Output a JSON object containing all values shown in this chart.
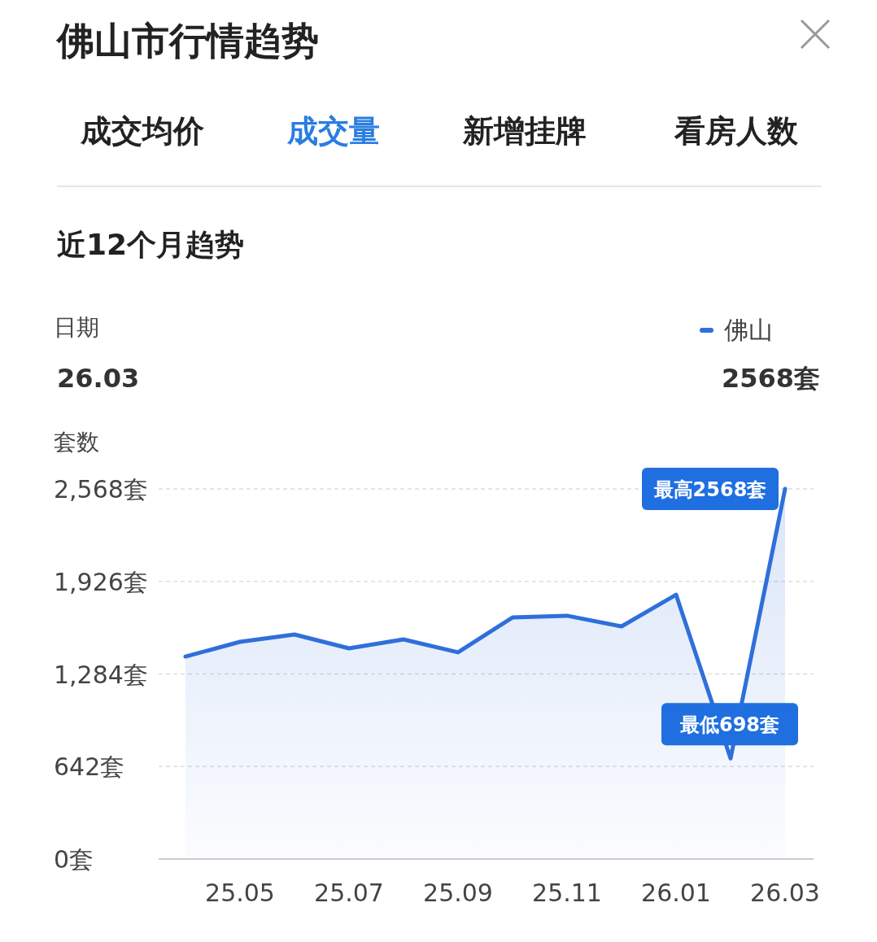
{
  "chart_data": {
    "type": "area",
    "title": "佛山市行情趋势",
    "subtitle": "近12个月趋势",
    "ylabel": "套数",
    "categories": [
      null,
      "25.05",
      null,
      "25.07",
      null,
      "25.09",
      null,
      "25.11",
      null,
      "26.01",
      null,
      "26.03"
    ],
    "series": [
      {
        "name": "佛山",
        "color": "#2f6fdb",
        "values": [
          1405,
          1507,
          1558,
          1462,
          1524,
          1434,
          1676,
          1688,
          1614,
          1834,
          698,
          2568
        ]
      }
    ],
    "ylim": [
      0,
      2568
    ],
    "yticks": [
      {
        "value": 0,
        "label": "0套"
      },
      {
        "value": 642,
        "label": "642套"
      },
      {
        "value": 1284,
        "label": "1,284套"
      },
      {
        "value": 1926,
        "label": "1,926套"
      },
      {
        "value": 2568,
        "label": "2,568套"
      }
    ],
    "grid": "y",
    "legend": "top right",
    "marker": "none",
    "line_style": "solid",
    "annotations": [
      "成交均价",
      "成交量",
      "新增挂牌",
      "看房人数",
      "日期",
      "26.03",
      "2568套",
      {
        "text": "最高2568套",
        "x": "26.03",
        "y": 2568
      },
      {
        "text": "最低698套",
        "y": 698
      }
    ]
  }
}
